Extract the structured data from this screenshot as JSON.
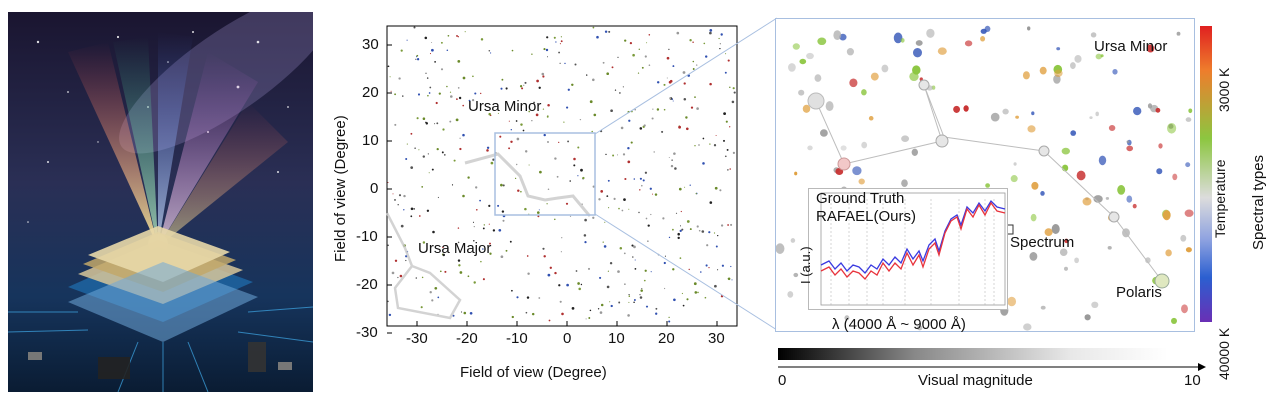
{
  "plot": {
    "xlabel": "Field of view (Degree)",
    "ylabel": "Field of view (Degree)",
    "x_ticks": [
      "-30",
      "-20",
      "-10",
      "0",
      "10",
      "20",
      "30"
    ],
    "y_ticks": [
      "30",
      "20",
      "10",
      "0",
      "-10",
      "-20",
      "-30"
    ],
    "ursa_minor_label": "Ursa Minor",
    "ursa_major_label": "Ursa Major"
  },
  "zoom": {
    "ursa_minor_label": "Ursa Minor",
    "polaris_label": "Polaris",
    "spectrum_label": "Spectrum",
    "temp_top": "3000 K",
    "temp_bottom": "40000 K",
    "temperature_label": "Temperature",
    "spectral_types_label": "Spectral types",
    "mag_min": "0",
    "mag_max": "10",
    "mag_label": "Visual magnitude"
  },
  "inset": {
    "legend_ground_truth": "Ground Truth",
    "legend_rafael": "RAFAEL(Ours)",
    "ylabel": "I (a.u.)",
    "xlabel": "λ (4000 Å ~ 9000 Å)"
  },
  "colors": {
    "ground_truth": "#3a3ae0",
    "rafael": "#e8333c",
    "box": "#a8bfe0"
  }
}
